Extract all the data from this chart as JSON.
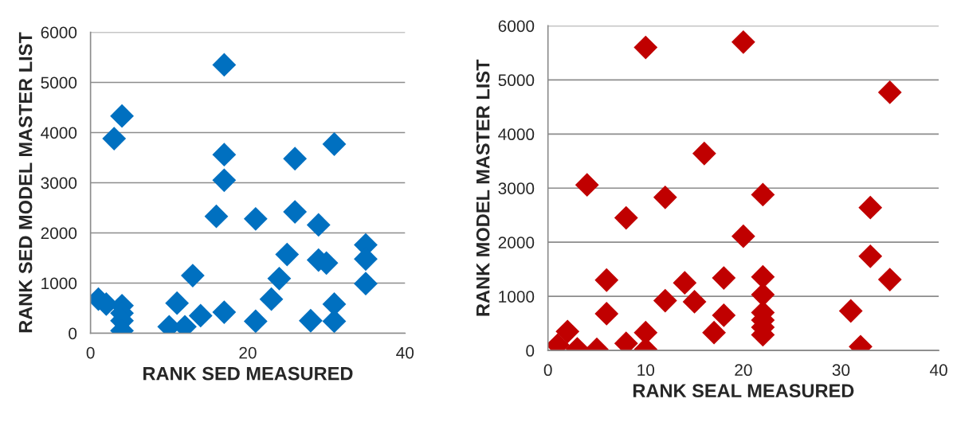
{
  "chart_data": [
    {
      "type": "scatter",
      "xlabel": "RANK SED MEASURED",
      "ylabel": "RANK SED MODEL MASTER LIST",
      "xlim": [
        0,
        40
      ],
      "xticks": [
        0,
        20,
        40
      ],
      "ylim": [
        0,
        6000
      ],
      "yticks": [
        0,
        1000,
        2000,
        3000,
        4000,
        5000,
        6000
      ],
      "grid": "y",
      "marker": "diamond",
      "legend": false,
      "series": [
        {
          "color": "#0070c0",
          "x": [
            1,
            2,
            4,
            4,
            4,
            4,
            3,
            4,
            10,
            11,
            12,
            13,
            14,
            16,
            17,
            17,
            17,
            17,
            21,
            21,
            23,
            24,
            25,
            26,
            26,
            28,
            29,
            29,
            30,
            31,
            31,
            31,
            35,
            35,
            35
          ],
          "values": [
            680,
            580,
            550,
            400,
            250,
            50,
            3880,
            4330,
            130,
            600,
            130,
            1150,
            350,
            2330,
            5350,
            3560,
            3050,
            420,
            2280,
            240,
            680,
            1090,
            1570,
            2420,
            3480,
            250,
            1460,
            2160,
            1400,
            3770,
            580,
            240,
            1760,
            1480,
            990
          ]
        }
      ]
    },
    {
      "type": "scatter",
      "xlabel": "RANK SEAL MEASURED",
      "ylabel": "RANK MODEL MASTER LIST",
      "xlim": [
        0,
        40
      ],
      "xticks": [
        0,
        10,
        20,
        30,
        40
      ],
      "ylim": [
        0,
        6000
      ],
      "yticks": [
        0,
        1000,
        2000,
        3000,
        4000,
        5000,
        6000
      ],
      "grid": "y",
      "marker": "diamond",
      "legend": false,
      "series": [
        {
          "color": "#c00000",
          "x": [
            1,
            2,
            3,
            5,
            6,
            6,
            8,
            8,
            10,
            10,
            10,
            4,
            12,
            12,
            14,
            15,
            16,
            17,
            18,
            18,
            20,
            20,
            22,
            22,
            22,
            22,
            22,
            22,
            22,
            31,
            32,
            33,
            33,
            35,
            35
          ],
          "values": [
            100,
            350,
            30,
            20,
            1300,
            680,
            130,
            2450,
            5600,
            330,
            20,
            3060,
            2830,
            920,
            1250,
            900,
            3640,
            330,
            1340,
            650,
            5700,
            2110,
            2880,
            1360,
            1030,
            700,
            560,
            430,
            290,
            730,
            70,
            2640,
            1740,
            4770,
            1310
          ]
        }
      ]
    }
  ]
}
